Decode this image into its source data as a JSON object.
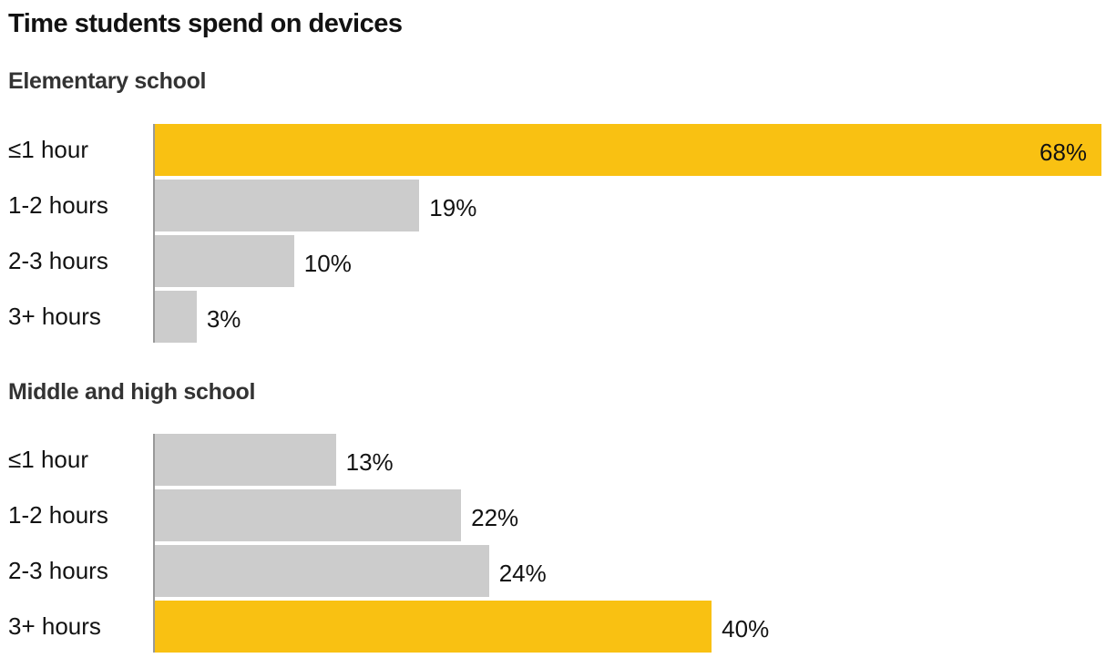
{
  "title": "Time students spend on devices",
  "colors": {
    "highlight": "#F9C112",
    "default": "#CCCCCC",
    "axis": "#999999"
  },
  "chart_data": [
    {
      "type": "bar",
      "orientation": "horizontal",
      "title": "Elementary school",
      "categories": [
        "≤1 hour",
        "1-2 hours",
        "2-3 hours",
        "3+ hours"
      ],
      "values": [
        68,
        19,
        10,
        3
      ],
      "labels": [
        "68%",
        "19%",
        "10%",
        "3%"
      ],
      "highlight": [
        true,
        false,
        false,
        false
      ],
      "unit": "%",
      "xlim": [
        0,
        68
      ]
    },
    {
      "type": "bar",
      "orientation": "horizontal",
      "title": "Middle and high school",
      "categories": [
        "≤1 hour",
        "1-2 hours",
        "2-3 hours",
        "3+ hours"
      ],
      "values": [
        13,
        22,
        24,
        40
      ],
      "labels": [
        "13%",
        "22%",
        "24%",
        "40%"
      ],
      "highlight": [
        false,
        false,
        false,
        true
      ],
      "unit": "%",
      "xlim": [
        0,
        68
      ]
    }
  ]
}
